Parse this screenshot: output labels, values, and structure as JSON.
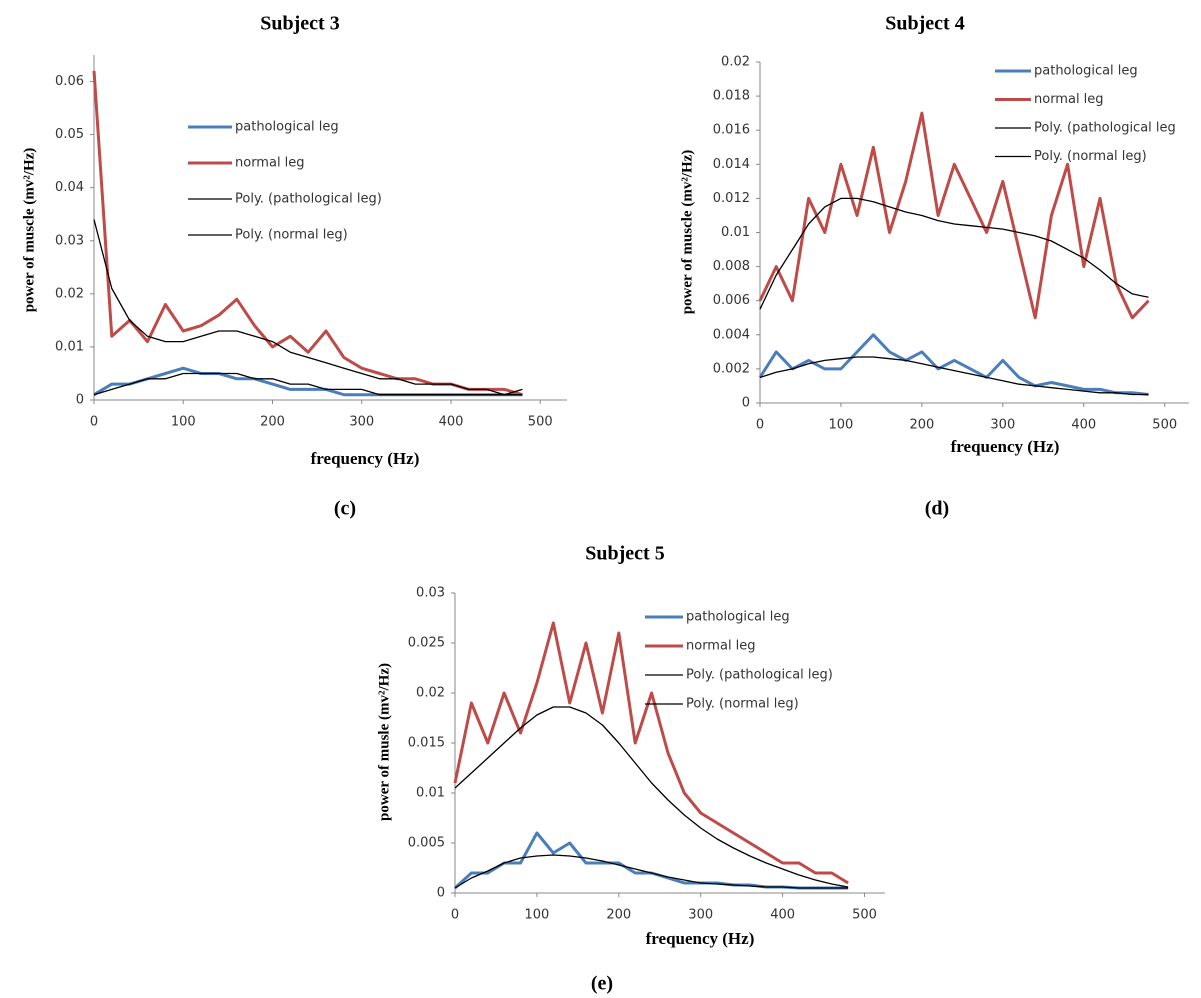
{
  "chart_data": [
    {
      "type": "line",
      "title": "Subject 3",
      "caption": "(c)",
      "x_label": "frequency (Hz)",
      "y_label": "power of muscle (mv²/Hz)",
      "x": [
        0,
        20,
        40,
        60,
        80,
        100,
        120,
        140,
        160,
        180,
        200,
        220,
        240,
        260,
        280,
        300,
        320,
        340,
        360,
        380,
        400,
        420,
        440,
        460,
        480
      ],
      "xlim": [
        0,
        530
      ],
      "xticks": [
        0,
        100,
        200,
        300,
        400,
        500
      ],
      "ylim": [
        0,
        0.065
      ],
      "yticks": [
        0,
        0.01,
        0.02,
        0.03,
        0.04,
        0.05,
        0.06
      ],
      "series": [
        {
          "name": "pathological leg",
          "color": "#4a7ebb",
          "values": [
            0.001,
            0.003,
            0.003,
            0.004,
            0.005,
            0.006,
            0.005,
            0.005,
            0.004,
            0.004,
            0.003,
            0.002,
            0.002,
            0.002,
            0.001,
            0.001,
            0.001,
            0.001,
            0.001,
            0.001,
            0.001,
            0.001,
            0.001,
            0.001,
            0.001
          ]
        },
        {
          "name": "normal leg",
          "color": "#be4b48",
          "values": [
            0.062,
            0.012,
            0.015,
            0.011,
            0.018,
            0.013,
            0.014,
            0.016,
            0.019,
            0.014,
            0.01,
            0.012,
            0.009,
            0.013,
            0.008,
            0.006,
            0.005,
            0.004,
            0.004,
            0.003,
            0.003,
            0.002,
            0.002,
            0.002,
            0.001
          ]
        },
        {
          "name": "Poly. (pathological leg)",
          "color": "#000000",
          "values": [
            0.001,
            0.002,
            0.003,
            0.004,
            0.004,
            0.005,
            0.005,
            0.005,
            0.005,
            0.004,
            0.004,
            0.003,
            0.003,
            0.002,
            0.002,
            0.002,
            0.001,
            0.001,
            0.001,
            0.001,
            0.001,
            0.001,
            0.001,
            0.001,
            0.002
          ]
        },
        {
          "name": "Poly. (normal leg)",
          "color": "#000000",
          "values": [
            0.034,
            0.021,
            0.015,
            0.012,
            0.011,
            0.011,
            0.012,
            0.013,
            0.013,
            0.012,
            0.011,
            0.009,
            0.008,
            0.007,
            0.006,
            0.005,
            0.004,
            0.004,
            0.003,
            0.003,
            0.003,
            0.002,
            0.002,
            0.001,
            0.001
          ]
        }
      ]
    },
    {
      "type": "line",
      "title": "Subject 4",
      "caption": "(d)",
      "x_label": "frequency (Hz)",
      "y_label": "power of muscle (mv²/Hz)",
      "x": [
        0,
        20,
        40,
        60,
        80,
        100,
        120,
        140,
        160,
        180,
        200,
        220,
        240,
        260,
        280,
        300,
        320,
        340,
        360,
        380,
        400,
        420,
        440,
        460,
        480
      ],
      "xlim": [
        0,
        530
      ],
      "xticks": [
        0,
        100,
        200,
        300,
        400,
        500
      ],
      "ylim": [
        0,
        0.02
      ],
      "yticks": [
        0,
        0.002,
        0.004,
        0.006,
        0.008,
        0.01,
        0.012,
        0.014,
        0.016,
        0.018,
        0.02
      ],
      "series": [
        {
          "name": "pathological leg",
          "color": "#4a7ebb",
          "values": [
            0.0015,
            0.003,
            0.002,
            0.0025,
            0.002,
            0.002,
            0.003,
            0.004,
            0.003,
            0.0025,
            0.003,
            0.002,
            0.0025,
            0.002,
            0.0015,
            0.0025,
            0.0015,
            0.001,
            0.0012,
            0.001,
            0.0008,
            0.0008,
            0.0006,
            0.0006,
            0.0005
          ]
        },
        {
          "name": "normal leg",
          "color": "#be4b48",
          "values": [
            0.006,
            0.008,
            0.006,
            0.012,
            0.01,
            0.014,
            0.011,
            0.015,
            0.01,
            0.013,
            0.017,
            0.011,
            0.014,
            0.012,
            0.01,
            0.013,
            0.009,
            0.005,
            0.011,
            0.014,
            0.008,
            0.012,
            0.007,
            0.005,
            0.006
          ]
        },
        {
          "name": "Poly. (pathological leg",
          "color": "#000000",
          "values": [
            0.0015,
            0.0018,
            0.002,
            0.0023,
            0.0025,
            0.0026,
            0.0027,
            0.0027,
            0.0026,
            0.0025,
            0.0023,
            0.0021,
            0.0019,
            0.0017,
            0.0015,
            0.0013,
            0.0011,
            0.001,
            0.0009,
            0.0008,
            0.0007,
            0.0006,
            0.0006,
            0.0005,
            0.0005
          ]
        },
        {
          "name": "Poly. (normal leg)",
          "color": "#000000",
          "values": [
            0.0055,
            0.0075,
            0.009,
            0.0105,
            0.0115,
            0.012,
            0.012,
            0.0118,
            0.0115,
            0.0112,
            0.011,
            0.0107,
            0.0105,
            0.0104,
            0.0103,
            0.0102,
            0.01,
            0.0098,
            0.0095,
            0.009,
            0.0085,
            0.0078,
            0.007,
            0.0064,
            0.0062
          ]
        }
      ]
    },
    {
      "type": "line",
      "title": "Subject 5",
      "caption": "(e)",
      "x_label": "frequency (Hz)",
      "y_label": "power of musle (mv²/Hz)",
      "x": [
        0,
        20,
        40,
        60,
        80,
        100,
        120,
        140,
        160,
        180,
        200,
        220,
        240,
        260,
        280,
        300,
        320,
        340,
        360,
        380,
        400,
        420,
        440,
        460,
        480
      ],
      "xlim": [
        0,
        525
      ],
      "xticks": [
        0,
        100,
        200,
        300,
        400,
        500
      ],
      "ylim": [
        0,
        0.03
      ],
      "yticks": [
        0,
        0.005,
        0.01,
        0.015,
        0.02,
        0.025,
        0.03
      ],
      "series": [
        {
          "name": "pathological leg",
          "color": "#4a7ebb",
          "values": [
            0.0005,
            0.002,
            0.002,
            0.003,
            0.003,
            0.006,
            0.004,
            0.005,
            0.003,
            0.003,
            0.003,
            0.002,
            0.002,
            0.0015,
            0.001,
            0.001,
            0.001,
            0.0008,
            0.0008,
            0.0006,
            0.0006,
            0.0005,
            0.0005,
            0.0005,
            0.0005
          ]
        },
        {
          "name": "normal leg",
          "color": "#be4b48",
          "values": [
            0.011,
            0.019,
            0.015,
            0.02,
            0.016,
            0.021,
            0.027,
            0.019,
            0.025,
            0.018,
            0.026,
            0.015,
            0.02,
            0.014,
            0.01,
            0.008,
            0.007,
            0.006,
            0.005,
            0.004,
            0.003,
            0.003,
            0.002,
            0.002,
            0.001
          ]
        },
        {
          "name": "Poly. (pathological leg)",
          "color": "#000000",
          "values": [
            0.0005,
            0.0015,
            0.0022,
            0.003,
            0.0035,
            0.0037,
            0.0038,
            0.0037,
            0.0035,
            0.0032,
            0.0028,
            0.0024,
            0.002,
            0.0016,
            0.0013,
            0.001,
            0.0009,
            0.0008,
            0.0007,
            0.0006,
            0.0006,
            0.0005,
            0.0005,
            0.0005,
            0.0005
          ]
        },
        {
          "name": "Poly. (normal leg)",
          "color": "#000000",
          "values": [
            0.0105,
            0.012,
            0.0135,
            0.015,
            0.0165,
            0.0178,
            0.0186,
            0.0186,
            0.018,
            0.0168,
            0.015,
            0.013,
            0.011,
            0.0093,
            0.0078,
            0.0065,
            0.0054,
            0.0045,
            0.0037,
            0.003,
            0.0024,
            0.0018,
            0.0013,
            0.0009,
            0.0006
          ]
        }
      ]
    }
  ]
}
